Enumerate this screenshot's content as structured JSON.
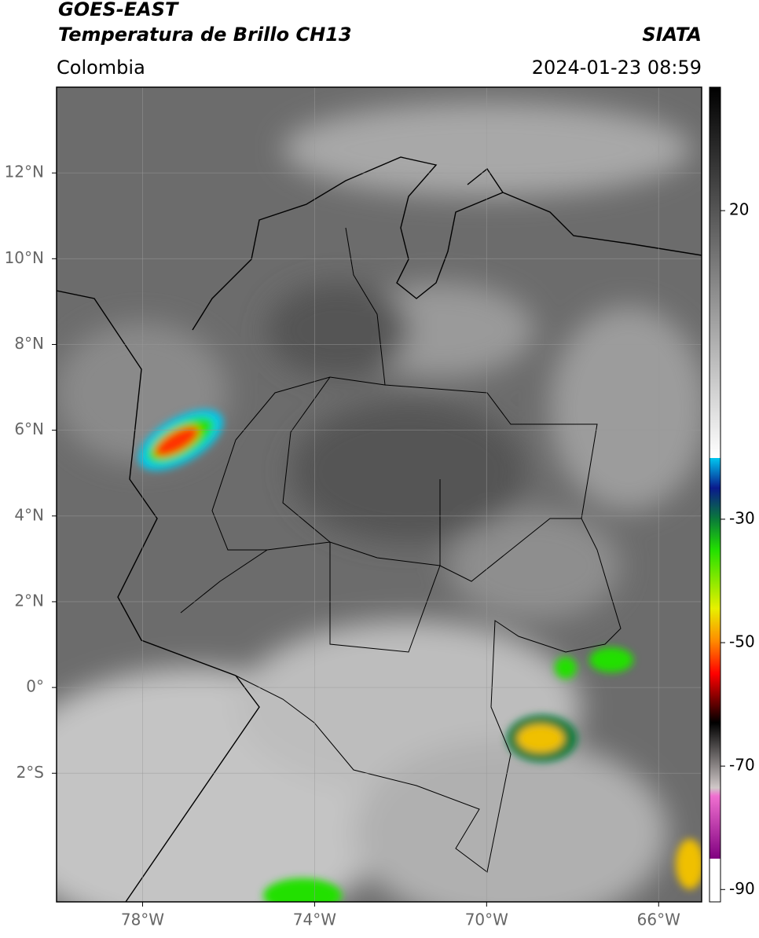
{
  "header": {
    "title": "GOES-EAST",
    "subtitle": "Temperatura de Brillo CH13",
    "source": "SIATA",
    "region": "Colombia",
    "timestamp": "2024-01-23 08:59"
  },
  "map": {
    "xlim": [
      -80,
      -65
    ],
    "ylim": [
      -5,
      14
    ],
    "grid": true,
    "xticks": [
      {
        "value": -78,
        "label": "78°W"
      },
      {
        "value": -74,
        "label": "74°W"
      },
      {
        "value": -70,
        "label": "70°W"
      },
      {
        "value": -66,
        "label": "66°W"
      }
    ],
    "yticks": [
      {
        "value": 12,
        "label": "12°N"
      },
      {
        "value": 10,
        "label": "10°N"
      },
      {
        "value": 8,
        "label": "8°N"
      },
      {
        "value": 6,
        "label": "6°N"
      },
      {
        "value": 4,
        "label": "4°N"
      },
      {
        "value": 2,
        "label": "2°N"
      },
      {
        "value": 0,
        "label": "0°"
      },
      {
        "value": -2,
        "label": "2°S"
      }
    ]
  },
  "colorbar": {
    "lim": [
      -92,
      40
    ],
    "ticks": [
      20,
      -30,
      -50,
      -70,
      -90
    ]
  }
}
